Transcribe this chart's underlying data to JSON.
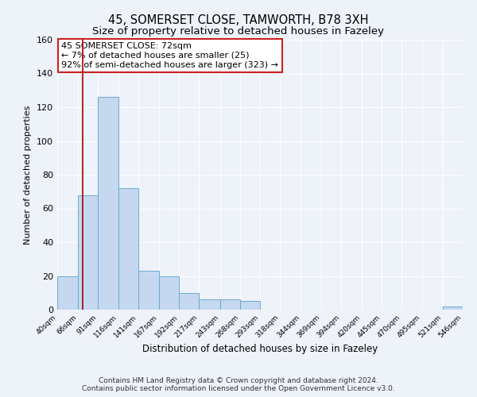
{
  "title": "45, SOMERSET CLOSE, TAMWORTH, B78 3XH",
  "subtitle": "Size of property relative to detached houses in Fazeley",
  "xlabel": "Distribution of detached houses by size in Fazeley",
  "ylabel": "Number of detached properties",
  "bin_edges": [
    40,
    66,
    91,
    116,
    141,
    167,
    192,
    217,
    243,
    268,
    293,
    318,
    344,
    369,
    394,
    420,
    445,
    470,
    495,
    521,
    546
  ],
  "bar_heights": [
    20,
    68,
    126,
    72,
    23,
    20,
    10,
    6,
    6,
    5,
    0,
    0,
    0,
    0,
    0,
    0,
    0,
    0,
    0,
    2
  ],
  "bar_color": "#c5d8f0",
  "bar_edge_color": "#6aaad4",
  "vline_x": 72,
  "vline_color": "#aa0000",
  "ylim": [
    0,
    160
  ],
  "annotation_line1": "45 SOMERSET CLOSE: 72sqm",
  "annotation_line2": "← 7% of detached houses are smaller (25)",
  "annotation_line3": "92% of semi-detached houses are larger (323) →",
  "footer_line1": "Contains HM Land Registry data © Crown copyright and database right 2024.",
  "footer_line2": "Contains public sector information licensed under the Open Government Licence v3.0.",
  "tick_labels": [
    "40sqm",
    "66sqm",
    "91sqm",
    "116sqm",
    "141sqm",
    "167sqm",
    "192sqm",
    "217sqm",
    "243sqm",
    "268sqm",
    "293sqm",
    "318sqm",
    "344sqm",
    "369sqm",
    "394sqm",
    "420sqm",
    "445sqm",
    "470sqm",
    "495sqm",
    "521sqm",
    "546sqm"
  ],
  "bg_color": "#eef2f9",
  "grid_color": "#ffffff",
  "title_fontsize": 10.5,
  "subtitle_fontsize": 9.5,
  "annotation_fontsize": 8,
  "footer_fontsize": 6.5,
  "ylabel_fontsize": 8,
  "xlabel_fontsize": 8.5
}
